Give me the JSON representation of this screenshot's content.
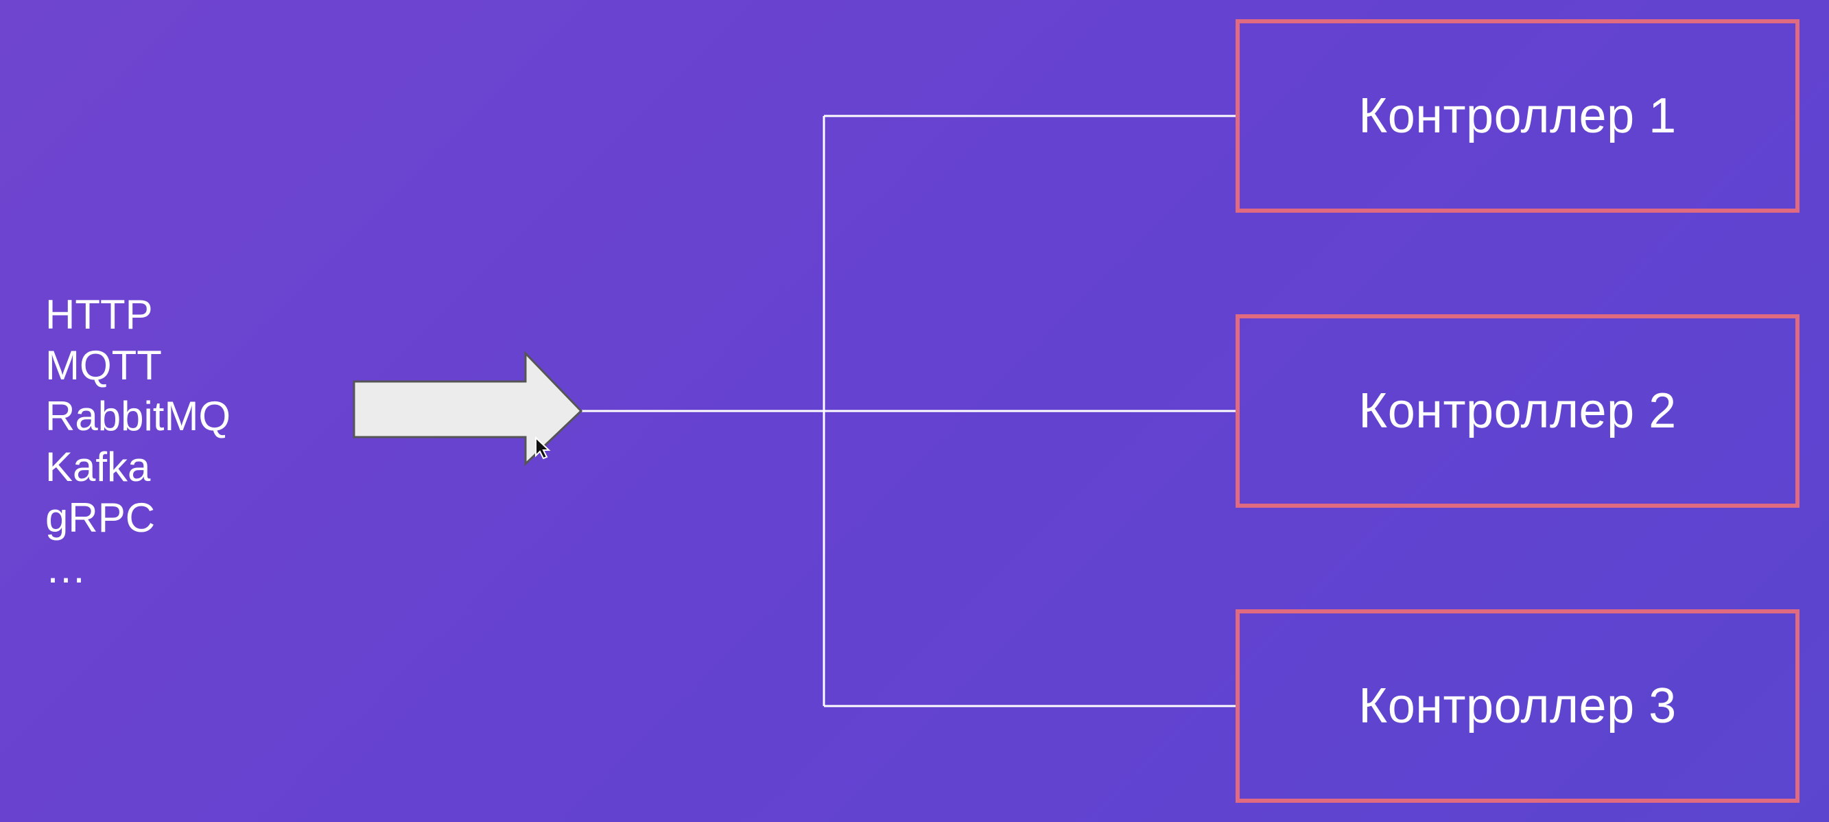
{
  "protocols": [
    "HTTP",
    "MQTT",
    "RabbitMQ",
    "Kafka",
    "gRPC",
    "…"
  ],
  "controllers": [
    "Контроллер 1",
    "Контроллер 2",
    "Контроллер 3"
  ],
  "colors": {
    "background": "#6542d0",
    "box_border": "#e06a7f",
    "line": "#ffffff",
    "arrow_fill": "#ececec",
    "arrow_stroke": "#555555",
    "text": "#ffffff"
  }
}
